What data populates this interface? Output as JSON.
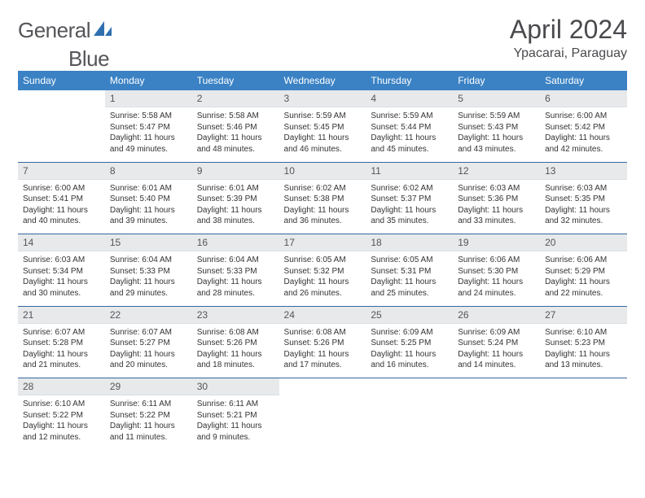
{
  "logo": {
    "word1": "General",
    "word2": "Blue"
  },
  "title": "April 2024",
  "location": "Ypacarai, Paraguay",
  "colors": {
    "header_bg": "#3b82c4",
    "header_text": "#ffffff",
    "daynum_bg": "#e7e9eb",
    "week_border": "#35689e",
    "logo_text": "#555559",
    "title_text": "#4a4a4e",
    "body_text": "#333333",
    "logo_icon": "#2f6fb0"
  },
  "weekdays": [
    "Sunday",
    "Monday",
    "Tuesday",
    "Wednesday",
    "Thursday",
    "Friday",
    "Saturday"
  ],
  "weeks": [
    [
      {
        "n": "",
        "sr": "",
        "ss": "",
        "dl1": "",
        "dl2": ""
      },
      {
        "n": "1",
        "sr": "Sunrise: 5:58 AM",
        "ss": "Sunset: 5:47 PM",
        "dl1": "Daylight: 11 hours",
        "dl2": "and 49 minutes."
      },
      {
        "n": "2",
        "sr": "Sunrise: 5:58 AM",
        "ss": "Sunset: 5:46 PM",
        "dl1": "Daylight: 11 hours",
        "dl2": "and 48 minutes."
      },
      {
        "n": "3",
        "sr": "Sunrise: 5:59 AM",
        "ss": "Sunset: 5:45 PM",
        "dl1": "Daylight: 11 hours",
        "dl2": "and 46 minutes."
      },
      {
        "n": "4",
        "sr": "Sunrise: 5:59 AM",
        "ss": "Sunset: 5:44 PM",
        "dl1": "Daylight: 11 hours",
        "dl2": "and 45 minutes."
      },
      {
        "n": "5",
        "sr": "Sunrise: 5:59 AM",
        "ss": "Sunset: 5:43 PM",
        "dl1": "Daylight: 11 hours",
        "dl2": "and 43 minutes."
      },
      {
        "n": "6",
        "sr": "Sunrise: 6:00 AM",
        "ss": "Sunset: 5:42 PM",
        "dl1": "Daylight: 11 hours",
        "dl2": "and 42 minutes."
      }
    ],
    [
      {
        "n": "7",
        "sr": "Sunrise: 6:00 AM",
        "ss": "Sunset: 5:41 PM",
        "dl1": "Daylight: 11 hours",
        "dl2": "and 40 minutes."
      },
      {
        "n": "8",
        "sr": "Sunrise: 6:01 AM",
        "ss": "Sunset: 5:40 PM",
        "dl1": "Daylight: 11 hours",
        "dl2": "and 39 minutes."
      },
      {
        "n": "9",
        "sr": "Sunrise: 6:01 AM",
        "ss": "Sunset: 5:39 PM",
        "dl1": "Daylight: 11 hours",
        "dl2": "and 38 minutes."
      },
      {
        "n": "10",
        "sr": "Sunrise: 6:02 AM",
        "ss": "Sunset: 5:38 PM",
        "dl1": "Daylight: 11 hours",
        "dl2": "and 36 minutes."
      },
      {
        "n": "11",
        "sr": "Sunrise: 6:02 AM",
        "ss": "Sunset: 5:37 PM",
        "dl1": "Daylight: 11 hours",
        "dl2": "and 35 minutes."
      },
      {
        "n": "12",
        "sr": "Sunrise: 6:03 AM",
        "ss": "Sunset: 5:36 PM",
        "dl1": "Daylight: 11 hours",
        "dl2": "and 33 minutes."
      },
      {
        "n": "13",
        "sr": "Sunrise: 6:03 AM",
        "ss": "Sunset: 5:35 PM",
        "dl1": "Daylight: 11 hours",
        "dl2": "and 32 minutes."
      }
    ],
    [
      {
        "n": "14",
        "sr": "Sunrise: 6:03 AM",
        "ss": "Sunset: 5:34 PM",
        "dl1": "Daylight: 11 hours",
        "dl2": "and 30 minutes."
      },
      {
        "n": "15",
        "sr": "Sunrise: 6:04 AM",
        "ss": "Sunset: 5:33 PM",
        "dl1": "Daylight: 11 hours",
        "dl2": "and 29 minutes."
      },
      {
        "n": "16",
        "sr": "Sunrise: 6:04 AM",
        "ss": "Sunset: 5:33 PM",
        "dl1": "Daylight: 11 hours",
        "dl2": "and 28 minutes."
      },
      {
        "n": "17",
        "sr": "Sunrise: 6:05 AM",
        "ss": "Sunset: 5:32 PM",
        "dl1": "Daylight: 11 hours",
        "dl2": "and 26 minutes."
      },
      {
        "n": "18",
        "sr": "Sunrise: 6:05 AM",
        "ss": "Sunset: 5:31 PM",
        "dl1": "Daylight: 11 hours",
        "dl2": "and 25 minutes."
      },
      {
        "n": "19",
        "sr": "Sunrise: 6:06 AM",
        "ss": "Sunset: 5:30 PM",
        "dl1": "Daylight: 11 hours",
        "dl2": "and 24 minutes."
      },
      {
        "n": "20",
        "sr": "Sunrise: 6:06 AM",
        "ss": "Sunset: 5:29 PM",
        "dl1": "Daylight: 11 hours",
        "dl2": "and 22 minutes."
      }
    ],
    [
      {
        "n": "21",
        "sr": "Sunrise: 6:07 AM",
        "ss": "Sunset: 5:28 PM",
        "dl1": "Daylight: 11 hours",
        "dl2": "and 21 minutes."
      },
      {
        "n": "22",
        "sr": "Sunrise: 6:07 AM",
        "ss": "Sunset: 5:27 PM",
        "dl1": "Daylight: 11 hours",
        "dl2": "and 20 minutes."
      },
      {
        "n": "23",
        "sr": "Sunrise: 6:08 AM",
        "ss": "Sunset: 5:26 PM",
        "dl1": "Daylight: 11 hours",
        "dl2": "and 18 minutes."
      },
      {
        "n": "24",
        "sr": "Sunrise: 6:08 AM",
        "ss": "Sunset: 5:26 PM",
        "dl1": "Daylight: 11 hours",
        "dl2": "and 17 minutes."
      },
      {
        "n": "25",
        "sr": "Sunrise: 6:09 AM",
        "ss": "Sunset: 5:25 PM",
        "dl1": "Daylight: 11 hours",
        "dl2": "and 16 minutes."
      },
      {
        "n": "26",
        "sr": "Sunrise: 6:09 AM",
        "ss": "Sunset: 5:24 PM",
        "dl1": "Daylight: 11 hours",
        "dl2": "and 14 minutes."
      },
      {
        "n": "27",
        "sr": "Sunrise: 6:10 AM",
        "ss": "Sunset: 5:23 PM",
        "dl1": "Daylight: 11 hours",
        "dl2": "and 13 minutes."
      }
    ],
    [
      {
        "n": "28",
        "sr": "Sunrise: 6:10 AM",
        "ss": "Sunset: 5:22 PM",
        "dl1": "Daylight: 11 hours",
        "dl2": "and 12 minutes."
      },
      {
        "n": "29",
        "sr": "Sunrise: 6:11 AM",
        "ss": "Sunset: 5:22 PM",
        "dl1": "Daylight: 11 hours",
        "dl2": "and 11 minutes."
      },
      {
        "n": "30",
        "sr": "Sunrise: 6:11 AM",
        "ss": "Sunset: 5:21 PM",
        "dl1": "Daylight: 11 hours",
        "dl2": "and 9 minutes."
      },
      {
        "n": "",
        "sr": "",
        "ss": "",
        "dl1": "",
        "dl2": ""
      },
      {
        "n": "",
        "sr": "",
        "ss": "",
        "dl1": "",
        "dl2": ""
      },
      {
        "n": "",
        "sr": "",
        "ss": "",
        "dl1": "",
        "dl2": ""
      },
      {
        "n": "",
        "sr": "",
        "ss": "",
        "dl1": "",
        "dl2": ""
      }
    ]
  ]
}
